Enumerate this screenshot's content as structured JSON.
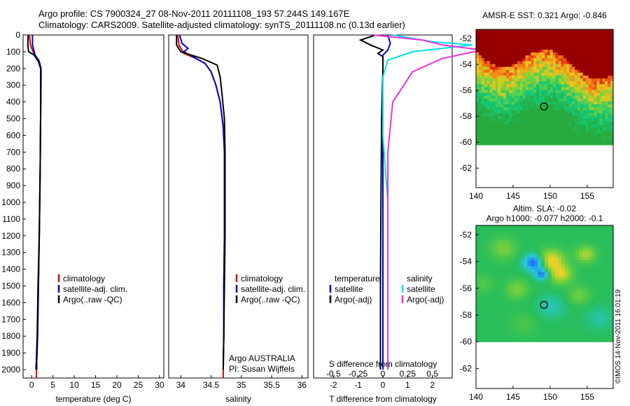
{
  "header": {
    "title_line1": "Argo profile: CS 7900324_27 08-Nov-2011 20111108_193 57.244S 149.167E",
    "title_line2": "Climatology: CARS2009. Satellite-adjusted climatology: synTS_20111108.nc (0.13d earlier)"
  },
  "colors": {
    "climatology": "#e00000",
    "satellite": "#0000d0",
    "argo": "#000000",
    "sal_satellite": "#00e0f0",
    "sal_argo": "#f030e0"
  },
  "depth_axis": {
    "ticks": [
      "0",
      "100",
      "200",
      "300",
      "400",
      "500",
      "600",
      "700",
      "800",
      "900",
      "1000",
      "1100",
      "1200",
      "1300",
      "1400",
      "1500",
      "1600",
      "1700",
      "1800",
      "1900",
      "2000"
    ],
    "range": [
      0,
      2050
    ]
  },
  "chart_data": [
    {
      "type": "line",
      "id": "temperature-profile",
      "xlabel": "temperature (deg C)",
      "x_ticks": [
        "0",
        "5",
        "10",
        "15",
        "20",
        "25",
        "30"
      ],
      "xlim": [
        -2,
        31
      ],
      "legend": [
        "climatology",
        "satellite-adj. clim.",
        "Argo(..raw -QC)"
      ],
      "series": [
        {
          "name": "climatology",
          "color": "#e00000",
          "points": [
            [
              -0.5,
              0
            ],
            [
              -0.3,
              60
            ],
            [
              0.5,
              110
            ],
            [
              1.7,
              150
            ],
            [
              2.2,
              200
            ],
            [
              2.2,
              300
            ],
            [
              2.1,
              500
            ],
            [
              2.0,
              800
            ],
            [
              1.8,
              1200
            ],
            [
              1.6,
              1500
            ],
            [
              1.4,
              1800
            ],
            [
              1.2,
              1950
            ],
            [
              1.1,
              2050
            ]
          ]
        },
        {
          "name": "satellite-adj. clim.",
          "color": "#0000d0",
          "points": [
            [
              0.2,
              0
            ],
            [
              0.2,
              60
            ],
            [
              0.8,
              120
            ],
            [
              1.8,
              160
            ],
            [
              2.2,
              200
            ],
            [
              2.2,
              300
            ],
            [
              2.1,
              500
            ],
            [
              2.0,
              800
            ],
            [
              1.8,
              1200
            ],
            [
              1.6,
              1500
            ],
            [
              1.4,
              1800
            ],
            [
              1.2,
              1950
            ],
            [
              1.2,
              2000
            ]
          ]
        },
        {
          "name": "Argo(..raw -QC)",
          "color": "#000000",
          "points": [
            [
              -0.8,
              0
            ],
            [
              -0.9,
              60
            ],
            [
              -0.7,
              100
            ],
            [
              0.6,
              120
            ],
            [
              1.6,
              160
            ],
            [
              2.1,
              200
            ],
            [
              2.1,
              300
            ],
            [
              2.1,
              500
            ],
            [
              2.0,
              800
            ],
            [
              1.8,
              1200
            ],
            [
              1.5,
              1500
            ],
            [
              1.3,
              1800
            ],
            [
              1.1,
              1950
            ],
            [
              1.0,
              2000
            ]
          ]
        }
      ]
    },
    {
      "type": "line",
      "id": "salinity-profile",
      "xlabel": "salinity",
      "x_ticks": [
        "34",
        "34.5",
        "35",
        "35.5",
        "36"
      ],
      "xlim": [
        33.8,
        36.1
      ],
      "legend": [
        "climatology",
        "satellite-adj. clim.",
        "Argo(..raw -QC)"
      ],
      "annotation": [
        "Argo AUSTRALIA",
        "PI: Susan Wijffels"
      ],
      "series": [
        {
          "name": "climatology",
          "color": "#e00000",
          "points": [
            [
              33.95,
              0
            ],
            [
              33.97,
              60
            ],
            [
              34.05,
              110
            ],
            [
              34.25,
              140
            ],
            [
              34.4,
              170
            ],
            [
              34.5,
              220
            ],
            [
              34.58,
              300
            ],
            [
              34.65,
              400
            ],
            [
              34.7,
              550
            ],
            [
              34.72,
              700
            ],
            [
              34.72,
              900
            ],
            [
              34.72,
              1200
            ],
            [
              34.71,
              1500
            ],
            [
              34.71,
              1800
            ],
            [
              34.7,
              2000
            ],
            [
              34.7,
              2050
            ]
          ]
        },
        {
          "name": "satellite-adj. clim.",
          "color": "#0000d0",
          "points": [
            [
              33.98,
              0
            ],
            [
              34.02,
              50
            ],
            [
              34.12,
              80
            ],
            [
              34.05,
              100
            ],
            [
              34.25,
              140
            ],
            [
              34.4,
              170
            ],
            [
              34.5,
              220
            ],
            [
              34.58,
              300
            ],
            [
              34.65,
              400
            ],
            [
              34.7,
              550
            ],
            [
              34.72,
              700
            ],
            [
              34.72,
              900
            ],
            [
              34.72,
              1200
            ],
            [
              34.71,
              1500
            ],
            [
              34.71,
              1800
            ],
            [
              34.7,
              1950
            ]
          ]
        },
        {
          "name": "Argo(..raw -QC)",
          "color": "#000000",
          "points": [
            [
              33.93,
              0
            ],
            [
              33.93,
              60
            ],
            [
              34.0,
              100
            ],
            [
              34.35,
              140
            ],
            [
              34.6,
              180
            ],
            [
              34.65,
              250
            ],
            [
              34.68,
              350
            ],
            [
              34.72,
              500
            ],
            [
              34.73,
              700
            ],
            [
              34.73,
              900
            ],
            [
              34.73,
              1200
            ],
            [
              34.72,
              1500
            ],
            [
              34.71,
              1800
            ],
            [
              34.7,
              2000
            ]
          ]
        }
      ]
    },
    {
      "type": "line",
      "id": "difference-profile",
      "xlabel": "T difference from climatology",
      "x_ticks": [
        "-2",
        "-1",
        "0",
        "1",
        "2"
      ],
      "xlim": [
        -2.8,
        2.8
      ],
      "x2label": "S difference from climatology",
      "x2_ticks": [
        "-0.5",
        "-0.25",
        "0",
        "0.25",
        "0.5"
      ],
      "legend_temperature": [
        "temperature",
        "satellite",
        "Argo(-adj)"
      ],
      "legend_salinity": [
        "salinity",
        "satellite",
        "Argo(-adj)"
      ],
      "series": [
        {
          "name": "temperature satellite",
          "color": "#0000d0",
          "points": [
            [
              0.2,
              0
            ],
            [
              0.3,
              50
            ],
            [
              0.2,
              90
            ],
            [
              0.0,
              120
            ],
            [
              0.0,
              200
            ],
            [
              0.0,
              500
            ],
            [
              0.0,
              1000
            ],
            [
              0.0,
              2000
            ]
          ]
        },
        {
          "name": "temperature Argo(-adj)",
          "color": "#000000",
          "points": [
            [
              -0.3,
              0
            ],
            [
              -0.5,
              10
            ],
            [
              -0.9,
              30
            ],
            [
              -0.5,
              60
            ],
            [
              0.0,
              90
            ],
            [
              -0.2,
              110
            ],
            [
              0.0,
              130
            ],
            [
              0.0,
              200
            ],
            [
              -0.05,
              500
            ],
            [
              -0.08,
              1000
            ],
            [
              -0.1,
              1500
            ],
            [
              -0.1,
              2000
            ]
          ]
        },
        {
          "name": "salinity satellite",
          "color": "#00e0f0",
          "points": [
            [
              0.1,
              0
            ],
            [
              0.5,
              40
            ],
            [
              0.9,
              60
            ],
            [
              0.3,
              100
            ],
            [
              0.05,
              150
            ],
            [
              0.0,
              250
            ],
            [
              0.0,
              600
            ],
            [
              0.05,
              1000
            ],
            [
              0.05,
              2000
            ]
          ]
        },
        {
          "name": "salinity Argo(-adj)",
          "color": "#f030e0",
          "points": [
            [
              -0.1,
              0
            ],
            [
              0.4,
              30
            ],
            [
              0.6,
              60
            ],
            [
              1.0,
              90
            ],
            [
              0.6,
              140
            ],
            [
              0.3,
              220
            ],
            [
              0.1,
              400
            ],
            [
              0.05,
              700
            ],
            [
              0.05,
              1000
            ],
            [
              0.05,
              1500
            ],
            [
              0.05,
              2000
            ]
          ]
        }
      ]
    },
    {
      "type": "heatmap",
      "id": "sst-map",
      "title": "AMSR-E SST: 0.321 Argo: -0.846",
      "x_ticks": [
        "140",
        "145",
        "150",
        "155"
      ],
      "y_ticks": [
        "-52",
        "-54",
        "-56",
        "-58",
        "-60",
        "-62"
      ],
      "xlim": [
        140,
        158.5
      ],
      "ylim": [
        -63.5,
        -51.3
      ],
      "data_ylim": [
        -60.2,
        -51.3
      ],
      "marker": {
        "lon": 149.167,
        "lat": -57.244
      }
    },
    {
      "type": "heatmap",
      "id": "sla-map",
      "title_line1": "Altim. SLA: -0.02",
      "title_line2": "Argo h1000: -0.077 h2000: -0.1",
      "x_ticks": [
        "140",
        "145",
        "150",
        "155"
      ],
      "y_ticks": [
        "-52",
        "-54",
        "-56",
        "-58",
        "-60",
        "-62"
      ],
      "xlim": [
        140,
        158.5
      ],
      "ylim": [
        -63.5,
        -51.3
      ],
      "data_ylim": [
        -60.0,
        -51.3
      ],
      "marker": {
        "lon": 149.167,
        "lat": -57.244
      }
    }
  ],
  "credit": "©IMOS 14-Nov-2011 16:01:19"
}
